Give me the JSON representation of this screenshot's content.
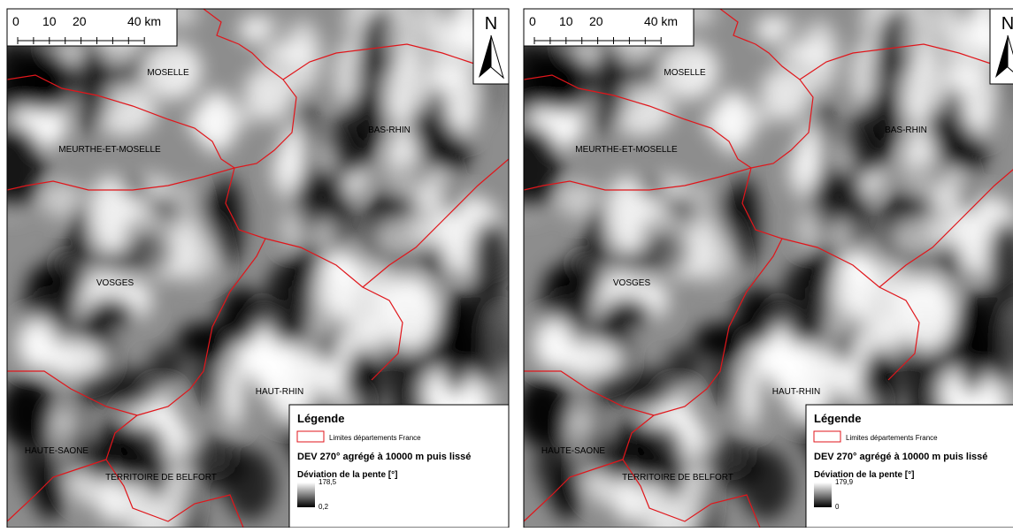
{
  "panels": [
    {
      "scale_bar": {
        "labels": [
          "0",
          "10",
          "20",
          "40 km"
        ]
      },
      "north": "N",
      "departments": [
        "MOSELLE",
        "BAS-RHIN",
        "MEURTHE-ET-MOSELLE",
        "VOSGES",
        "HAUT-RHIN",
        "HAUTE-SAONE",
        "TERRITOIRE DE BELFORT"
      ],
      "legend": {
        "title": "Légende",
        "boundary": "Limites départements France",
        "layer": "DEV 270° agrégé à 10000 m puis lissé",
        "field": "Déviation de la pente [°]",
        "max": "178,5",
        "min": "0,2"
      }
    },
    {
      "scale_bar": {
        "labels": [
          "0",
          "10",
          "20",
          "40 km"
        ]
      },
      "north": "N",
      "departments": [
        "MOSELLE",
        "BAS-RHIN",
        "MEURTHE-ET-MOSELLE",
        "VOSGES",
        "HAUT-RHIN",
        "HAUTE-SAONE",
        "TERRITOIRE DE BELFORT"
      ],
      "legend": {
        "title": "Légende",
        "boundary": "Limites départements France",
        "layer": "DEV 270° agrégé à 10000 m puis lissé",
        "field": "Déviation de la pente [°]",
        "max": "179,9",
        "min": "0"
      }
    }
  ]
}
